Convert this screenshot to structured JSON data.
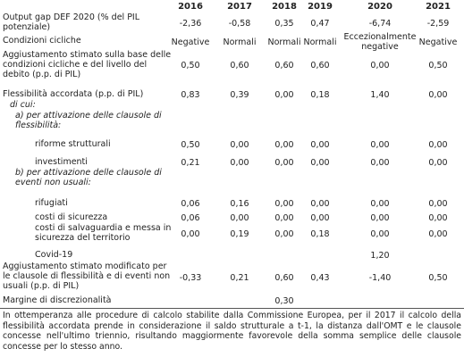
{
  "table": {
    "columns": [
      "2016",
      "2017",
      "2018",
      "2019",
      "2020",
      "2021"
    ],
    "rows": [
      {
        "label": "Output gap DEF 2020 (% del PIL potenziale)",
        "values": [
          "-2,36",
          "-0,58",
          "0,35",
          "0,47",
          "-6,74",
          "-2,59"
        ]
      },
      {
        "label": "Condizioni cicliche",
        "values": [
          "Negative",
          "Normali",
          "Normali",
          "Normali",
          "Eccezionalmente negative",
          "Negative"
        ]
      },
      {
        "label": "Aggiustamento stimato sulla base delle condizioni cicliche e del livello del debito (p.p. di PIL)",
        "values": [
          "0,50",
          "0,60",
          "0,60",
          "0,60",
          "0,00",
          "0,50"
        ]
      },
      {
        "label": "Flessibilità accordata (p.p. di PIL)",
        "values": [
          "0,83",
          "0,39",
          "0,00",
          "0,18",
          "1,40",
          "0,00"
        ]
      },
      {
        "label": "di cui:"
      },
      {
        "label": "a) per attivazione delle clausole di flessibilità:"
      },
      {
        "label": "riforme strutturali",
        "values": [
          "0,50",
          "0,00",
          "0,00",
          "0,00",
          "0,00",
          "0,00"
        ]
      },
      {
        "label": "investimenti",
        "values": [
          "0,21",
          "0,00",
          "0,00",
          "0,00",
          "0,00",
          "0,00"
        ]
      },
      {
        "label": "b) per attivazione delle clausole di eventi non usuali:"
      },
      {
        "label": "rifugiati",
        "values": [
          "0,06",
          "0,16",
          "0,00",
          "0,00",
          "0,00",
          "0,00"
        ]
      },
      {
        "label": "costi di sicurezza",
        "values": [
          "0,06",
          "0,00",
          "0,00",
          "0,00",
          "0,00",
          "0,00"
        ]
      },
      {
        "label": "costi di salvaguardia e messa in sicurezza del territorio",
        "values": [
          "0,00",
          "0,19",
          "0,00",
          "0,18",
          "0,00",
          "0,00"
        ]
      },
      {
        "label": "Covid-19",
        "values": [
          null,
          null,
          null,
          null,
          "1,20",
          null
        ]
      },
      {
        "label": "Aggiustamento stimato modificato per le clausole di flessibilità e di eventi non usuali (p.p. di PIL)",
        "values": [
          "-0,33",
          "0,21",
          "0,60",
          "0,43",
          "-1,40",
          "0,50"
        ]
      },
      {
        "label": "Margine di discrezionalità",
        "values": [
          null,
          null,
          "0,30",
          null,
          null,
          null
        ]
      }
    ],
    "footnote": "In ottemperanza alle procedure di calcolo stabilite dalla Commissione Europea, per il 2017 il calcolo della flessibilità accordata prende in considerazione il saldo strutturale a t-1, la distanza dall'OMT e le clausole concesse nell'ultimo triennio, risultando maggiormente favorevole della somma semplice delle clausole concesse per lo stesso anno."
  }
}
